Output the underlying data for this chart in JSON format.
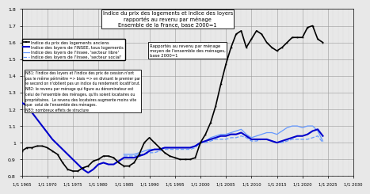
{
  "title_line1": "Indice du prix des logements et indice des loyers",
  "title_line2": "rapportés au revenu par ménage",
  "title_line3": "Ensemble de la France, base 2000=1",
  "legend_label1": "Indice du prix des logements anciens",
  "legend_label2": "Indice des loyers de l'INSEE, tous logements",
  "legend_label3": "Indice des loyers de l'Insee, 'secteur libre'",
  "legend_label4": "Indice des loyers de l'Insee, 'secteur social'",
  "right_note": "Rapportés au revenu par ménage\nmoyen de l'ensemble des ménages,\nbase 2000=1",
  "nb_text": "NB1: l'indice des loyers et l'indice des prix de cession n'ont\npas le même périmètre => biais => en divisant le premier par\nle second on n'obtient pas un indice du rendement locatif brut.\nNB2: le revenu par ménage qui figure au dénominateur est\ncelui de l'ensemble des ménages, qu'ils soient locataires ou\npropriétaires.  Le revenu des locataires augmente moins vite\nque  celui de l'ensemble des ménages.\nNB3: nombreux effets de structure",
  "xlim_min": 1965,
  "xlim_max": 2030,
  "ylim_min": 0.8,
  "ylim_max": 1.8,
  "yticks": [
    0.8,
    0.9,
    1.0,
    1.1,
    1.2,
    1.3,
    1.4,
    1.5,
    1.6,
    1.7,
    1.8
  ],
  "xticks": [
    1965,
    1970,
    1975,
    1980,
    1985,
    1990,
    1995,
    2000,
    2005,
    2010,
    2015,
    2020,
    2025,
    2030
  ],
  "xtick_labels": [
    "1/1 1965",
    "1/1 1970",
    "1/1 1975",
    "1/1 1980",
    "1/1 1985",
    "1/1 1990",
    "1/1 1995",
    "1/1 2000",
    "1/1 2005",
    "1/1 2010",
    "1/1 2015",
    "1/1 2020",
    "1/1 2025",
    "1/1 2030"
  ],
  "color_black": "#000000",
  "color_blue_dark": "#0000cc",
  "color_blue_light": "#6699ff",
  "bg_color": "#e8e8e8",
  "housing_x": [
    1965,
    1966,
    1967,
    1968,
    1969,
    1970,
    1971,
    1972,
    1973,
    1974,
    1975,
    1976,
    1977,
    1978,
    1979,
    1980,
    1981,
    1982,
    1983,
    1984,
    1985,
    1986,
    1987,
    1988,
    1989,
    1990,
    1991,
    1992,
    1993,
    1994,
    1995,
    1996,
    1997,
    1998,
    1999,
    2000,
    2001,
    2002,
    2003,
    2004,
    2005,
    2006,
    2007,
    2008,
    2009,
    2010,
    2011,
    2012,
    2013,
    2014,
    2015,
    2016,
    2017,
    2018,
    2019,
    2020,
    2021,
    2022,
    2023,
    2024
  ],
  "housing_y": [
    0.95,
    0.97,
    0.97,
    0.98,
    0.98,
    0.97,
    0.95,
    0.93,
    0.88,
    0.84,
    0.83,
    0.83,
    0.85,
    0.86,
    0.89,
    0.9,
    0.92,
    0.92,
    0.91,
    0.88,
    0.86,
    0.86,
    0.88,
    0.93,
    1.0,
    1.03,
    1.0,
    0.97,
    0.94,
    0.92,
    0.91,
    0.9,
    0.9,
    0.9,
    0.91,
    1.0,
    1.05,
    1.12,
    1.22,
    1.35,
    1.47,
    1.57,
    1.65,
    1.67,
    1.57,
    1.62,
    1.67,
    1.65,
    1.6,
    1.57,
    1.55,
    1.57,
    1.6,
    1.63,
    1.63,
    1.63,
    1.69,
    1.7,
    1.62,
    1.6
  ],
  "loyer_all_x": [
    1965,
    1966,
    1967,
    1968,
    1969,
    1970,
    1971,
    1972,
    1973,
    1974,
    1975,
    1976,
    1977,
    1978,
    1979,
    1980,
    1981,
    1982,
    1983,
    1984,
    1985,
    1986,
    1987,
    1988,
    1989,
    1990,
    1991,
    1992,
    1993,
    1994,
    1995,
    1996,
    1997,
    1998,
    1999,
    2000,
    2001,
    2002,
    2003,
    2004,
    2005,
    2006,
    2007,
    2008,
    2009,
    2010,
    2011,
    2012,
    2013,
    2014,
    2015,
    2016,
    2017,
    2018,
    2019,
    2020,
    2021,
    2022,
    2023,
    2024
  ],
  "loyer_all_y": [
    1.24,
    1.22,
    1.18,
    1.14,
    1.1,
    1.06,
    1.02,
    0.99,
    0.96,
    0.93,
    0.9,
    0.87,
    0.84,
    0.82,
    0.84,
    0.87,
    0.88,
    0.87,
    0.87,
    0.89,
    0.91,
    0.91,
    0.91,
    0.92,
    0.93,
    0.95,
    0.96,
    0.96,
    0.97,
    0.97,
    0.97,
    0.97,
    0.97,
    0.97,
    0.98,
    1.0,
    1.01,
    1.02,
    1.03,
    1.04,
    1.04,
    1.05,
    1.05,
    1.06,
    1.04,
    1.02,
    1.02,
    1.02,
    1.02,
    1.01,
    1.0,
    1.01,
    1.02,
    1.03,
    1.04,
    1.04,
    1.05,
    1.07,
    1.08,
    1.04
  ],
  "loyer_libre_x": [
    1985,
    1986,
    1987,
    1988,
    1989,
    1990,
    1991,
    1992,
    1993,
    1994,
    1995,
    1996,
    1997,
    1998,
    1999,
    2000,
    2001,
    2002,
    2003,
    2004,
    2005,
    2006,
    2007,
    2008,
    2009,
    2010,
    2011,
    2012,
    2013,
    2014,
    2015,
    2016,
    2017,
    2018,
    2019,
    2020,
    2021,
    2022,
    2023,
    2024
  ],
  "loyer_libre_y": [
    0.93,
    0.93,
    0.93,
    0.94,
    0.95,
    0.96,
    0.96,
    0.96,
    0.97,
    0.97,
    0.97,
    0.97,
    0.97,
    0.97,
    0.98,
    1.0,
    1.01,
    1.03,
    1.04,
    1.05,
    1.05,
    1.06,
    1.07,
    1.08,
    1.05,
    1.03,
    1.04,
    1.05,
    1.06,
    1.06,
    1.05,
    1.07,
    1.09,
    1.1,
    1.1,
    1.09,
    1.1,
    1.1,
    1.07,
    1.01
  ],
  "loyer_social_x": [
    1985,
    1986,
    1987,
    1988,
    1989,
    1990,
    1991,
    1992,
    1993,
    1994,
    1995,
    1996,
    1997,
    1998,
    1999,
    2000,
    2001,
    2002,
    2003,
    2004,
    2005,
    2006,
    2007,
    2008,
    2009,
    2010,
    2011,
    2012,
    2013,
    2014,
    2015,
    2016,
    2017,
    2018,
    2019,
    2020,
    2021,
    2022,
    2023,
    2024
  ],
  "loyer_social_y": [
    0.92,
    0.92,
    0.92,
    0.93,
    0.93,
    0.94,
    0.94,
    0.95,
    0.96,
    0.96,
    0.96,
    0.96,
    0.96,
    0.96,
    0.97,
    1.0,
    1.0,
    1.01,
    1.02,
    1.02,
    1.02,
    1.03,
    1.03,
    1.04,
    1.03,
    1.01,
    1.01,
    1.02,
    1.02,
    1.01,
    1.0,
    1.0,
    1.01,
    1.02,
    1.02,
    1.02,
    1.02,
    1.03,
    1.04,
    1.0
  ]
}
